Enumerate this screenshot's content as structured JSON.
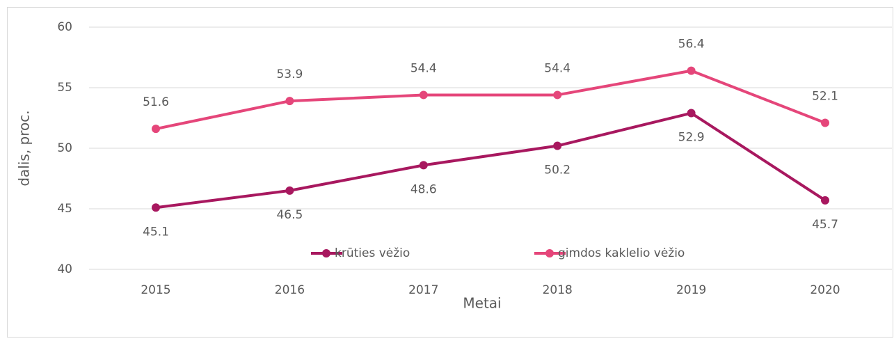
{
  "chart_data": {
    "type": "line",
    "x_label": "Metai",
    "y_label": "dalis, proc.",
    "categories": [
      "2015",
      "2016",
      "2017",
      "2018",
      "2019",
      "2020"
    ],
    "series": [
      {
        "name": "krūties vėžio",
        "color": "#a8185f",
        "values": [
          45.1,
          46.5,
          48.6,
          50.2,
          52.9,
          45.7
        ]
      },
      {
        "name": "gimdos kaklelio vėžio",
        "color": "#e5467a",
        "values": [
          51.6,
          53.9,
          54.4,
          54.4,
          56.4,
          52.1
        ]
      }
    ],
    "ylim": [
      40,
      60
    ],
    "yticks": [
      40,
      45,
      50,
      55,
      60
    ],
    "grid": true,
    "legend": "bottom"
  }
}
